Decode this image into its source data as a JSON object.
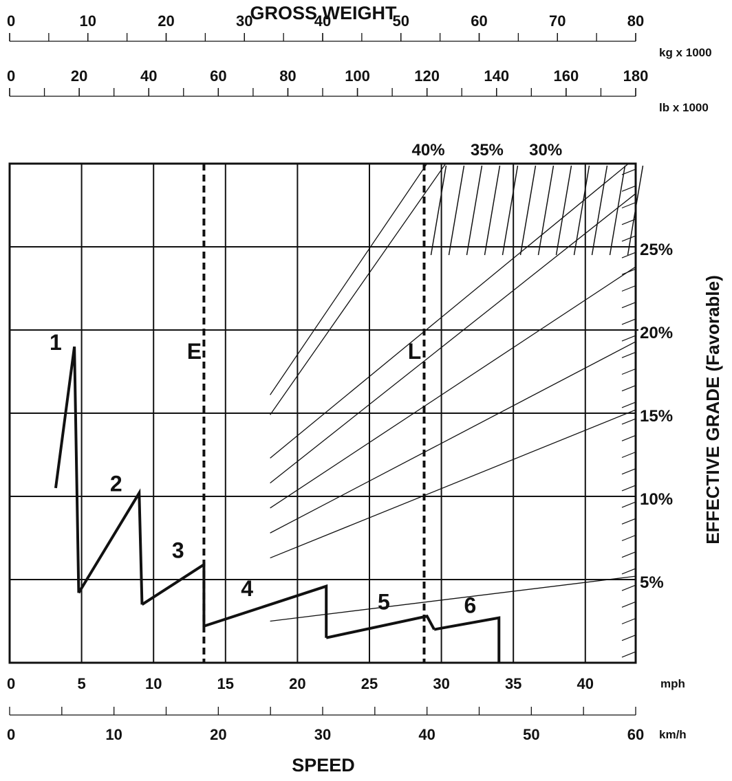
{
  "chart_data": {
    "type": "line",
    "title": "GROSS WEIGHT",
    "xlabel": "SPEED",
    "ylabel": "EFFECTIVE GRADE (Favorable)",
    "speed_mph": {
      "unit": "mph",
      "range": [
        0,
        43.5
      ],
      "ticks": [
        "0",
        "5",
        "10",
        "15",
        "20",
        "25",
        "30",
        "35",
        "40"
      ],
      "tick_values": [
        0,
        5,
        10,
        15,
        20,
        25,
        30,
        35,
        40
      ]
    },
    "speed_kmh": {
      "unit": "km/h",
      "range": [
        0,
        60
      ],
      "ticks": [
        "0",
        "10",
        "20",
        "30",
        "40",
        "50",
        "60"
      ],
      "tick_values": [
        0,
        10,
        20,
        30,
        40,
        50,
        60
      ],
      "minor_step": 5
    },
    "weight_kg": {
      "unit": "kg x 1000",
      "range": [
        0,
        80
      ],
      "ticks": [
        "0",
        "10",
        "20",
        "30",
        "40",
        "50",
        "60",
        "70",
        "80"
      ],
      "tick_values": [
        0,
        10,
        20,
        30,
        40,
        50,
        60,
        70,
        80
      ],
      "minor_step": 5
    },
    "weight_lb": {
      "unit": "lb x 1000",
      "range": [
        0,
        180
      ],
      "ticks": [
        "0",
        "20",
        "40",
        "60",
        "80",
        "100",
        "120",
        "140",
        "160",
        "180"
      ],
      "tick_values": [
        0,
        20,
        40,
        60,
        80,
        100,
        120,
        140,
        160,
        180
      ],
      "minor_step": 10
    },
    "grade_axis": {
      "range": [
        0,
        30
      ],
      "ticks": [
        "5%",
        "10%",
        "15%",
        "20%",
        "25%"
      ],
      "tick_values": [
        5,
        10,
        15,
        20,
        25
      ],
      "gridlines": [
        5,
        10,
        15,
        20,
        25,
        30
      ]
    },
    "percent_labels": [
      {
        "text": "40%",
        "weight_kg": 53.5
      },
      {
        "text": "35%",
        "weight_kg": 61
      },
      {
        "text": "30%",
        "weight_kg": 68.5
      }
    ],
    "reference_lines": [
      {
        "label": "E",
        "speed_mph": 13.5
      },
      {
        "label": "L",
        "speed_mph": 28.8
      }
    ],
    "gears": [
      {
        "label": "1",
        "points": [
          [
            3.2,
            10.5
          ],
          [
            4.5,
            19.0
          ],
          [
            4.8,
            4.2
          ],
          [
            4.8,
            4.2
          ]
        ],
        "label_at": [
          3.2,
          18.8
        ]
      },
      {
        "label": "2",
        "points": [
          [
            4.8,
            4.2
          ],
          [
            9.0,
            10.2
          ],
          [
            9.2,
            3.5
          ]
        ],
        "label_at": [
          7.4,
          10.3
        ]
      },
      {
        "label": "3",
        "points": [
          [
            9.2,
            3.5
          ],
          [
            13.5,
            5.9
          ],
          [
            13.5,
            2.2
          ]
        ],
        "label_at": [
          11.7,
          6.3
        ]
      },
      {
        "label": "4",
        "points": [
          [
            13.5,
            2.2
          ],
          [
            22.0,
            4.6
          ],
          [
            22.0,
            1.5
          ]
        ],
        "label_at": [
          16.5,
          4.0
        ]
      },
      {
        "label": "5",
        "points": [
          [
            22.0,
            1.5
          ],
          [
            29.0,
            2.8
          ],
          [
            29.5,
            2.0
          ]
        ],
        "label_at": [
          26.0,
          3.2
        ]
      },
      {
        "label": "6",
        "points": [
          [
            29.5,
            2.0
          ],
          [
            34.0,
            2.7
          ],
          [
            34.0,
            0
          ]
        ],
        "label_at": [
          32.0,
          3.0
        ]
      }
    ],
    "weight_lines": [
      {
        "from": [
          18.1,
          16.1
        ],
        "to": [
          29.0,
          30.0
        ]
      },
      {
        "from": [
          18.1,
          14.9
        ],
        "to": [
          30.3,
          30.0
        ]
      },
      {
        "from": [
          18.1,
          12.3
        ],
        "to": [
          43.0,
          30.0
        ]
      },
      {
        "from": [
          18.1,
          10.8
        ],
        "to": [
          43.5,
          28.2
        ]
      },
      {
        "from": [
          18.1,
          9.3
        ],
        "to": [
          43.5,
          23.8
        ]
      },
      {
        "from": [
          18.1,
          7.8
        ],
        "to": [
          43.5,
          19.3
        ]
      },
      {
        "from": [
          18.1,
          6.3
        ],
        "to": [
          43.5,
          15.2
        ]
      },
      {
        "from": [
          18.1,
          2.5
        ],
        "to": [
          43.5,
          5.2
        ]
      }
    ],
    "hatch_region": {
      "speed_from": 28.8,
      "speed_to": 43.5,
      "grade_from": 25,
      "grade_to": 30
    }
  }
}
